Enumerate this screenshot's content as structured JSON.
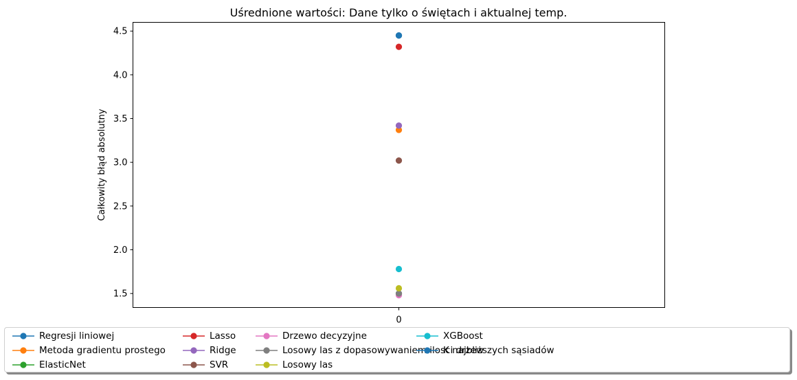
{
  "chart_data": {
    "type": "scatter",
    "title": "Uśrednione wartości: Dane tylko o świętach i aktualnej temp.",
    "xlabel": "",
    "ylabel": "Całkowity błąd absolutny",
    "x": [
      0
    ],
    "xticks": [
      "0"
    ],
    "yticks": [
      "1.5",
      "2.0",
      "2.5",
      "3.0",
      "3.5",
      "4.0",
      "4.5"
    ],
    "xlim": [
      -0.05,
      0.05
    ],
    "ylim": [
      1.34,
      4.6
    ],
    "grid": false,
    "legend_position": "bottom",
    "series": [
      {
        "name": "Regresji liniowej",
        "color": "#1f77b4",
        "values": [
          4.45
        ]
      },
      {
        "name": "Metoda gradientu prostego",
        "color": "#ff7f0e",
        "values": [
          3.37
        ]
      },
      {
        "name": "ElasticNet",
        "color": "#2ca02c",
        "values": [
          1.5
        ]
      },
      {
        "name": "Lasso",
        "color": "#d62728",
        "values": [
          4.32
        ]
      },
      {
        "name": "Ridge",
        "color": "#9467bd",
        "values": [
          3.42
        ]
      },
      {
        "name": "SVR",
        "color": "#8c564b",
        "values": [
          3.02
        ]
      },
      {
        "name": "Drzewo decyzyjne",
        "color": "#e377c2",
        "values": [
          1.48
        ]
      },
      {
        "name": "Losowy las z dopasowywaniem ilosci drzew",
        "color": "#7f7f7f",
        "values": [
          1.5
        ]
      },
      {
        "name": "Losowy las",
        "color": "#bcbd22",
        "values": [
          1.56
        ]
      },
      {
        "name": "XGBoost",
        "color": "#17becf",
        "values": [
          1.78
        ]
      },
      {
        "name": "K najbliższych sąsiadów",
        "color": "#1f77b4",
        "values": [
          4.45
        ]
      }
    ]
  }
}
